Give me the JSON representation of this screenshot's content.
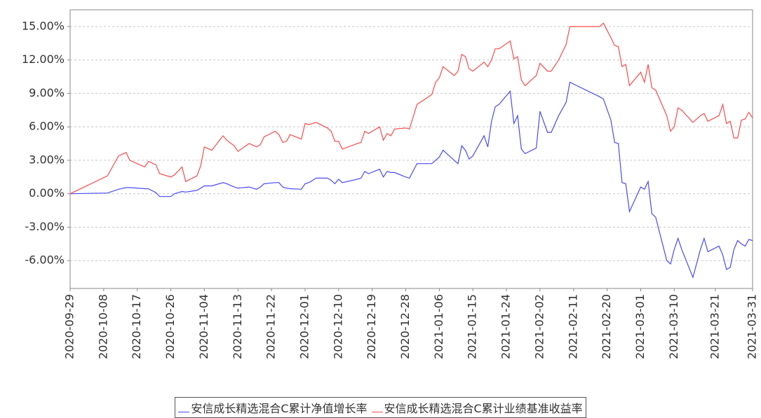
{
  "chart_data": {
    "type": "line",
    "x": [
      "2020-09-29",
      "2020-10-09",
      "2020-10-12",
      "2020-10-14",
      "2020-10-15",
      "2020-10-19",
      "2020-10-20",
      "2020-10-22",
      "2020-10-23",
      "2020-10-26",
      "2020-10-27",
      "2020-10-29",
      "2020-10-30",
      "2020-11-02",
      "2020-11-03",
      "2020-11-04",
      "2020-11-06",
      "2020-11-09",
      "2020-11-10",
      "2020-11-12",
      "2020-11-13",
      "2020-11-16",
      "2020-11-18",
      "2020-11-19",
      "2020-11-20",
      "2020-11-23",
      "2020-11-24",
      "2020-11-25",
      "2020-11-26",
      "2020-11-27",
      "2020-11-30",
      "2020-12-01",
      "2020-12-02",
      "2020-12-04",
      "2020-12-07",
      "2020-12-08",
      "2020-12-09",
      "2020-12-10",
      "2020-12-11",
      "2020-12-15",
      "2020-12-16",
      "2020-12-17",
      "2020-12-18",
      "2020-12-21",
      "2020-12-22",
      "2020-12-23",
      "2020-12-24",
      "2020-12-25",
      "2020-12-28",
      "2020-12-29",
      "2020-12-31",
      "2021-01-04",
      "2021-01-05",
      "2021-01-06",
      "2021-01-07",
      "2021-01-10",
      "2021-01-11",
      "2021-01-12",
      "2021-01-13",
      "2021-01-14",
      "2021-01-15",
      "2021-01-18",
      "2021-01-19",
      "2021-01-20",
      "2021-01-21",
      "2021-01-22",
      "2021-01-25",
      "2021-01-26",
      "2021-01-27",
      "2021-01-28",
      "2021-01-29",
      "2021-02-01",
      "2021-02-02",
      "2021-02-04",
      "2021-02-05",
      "2021-02-07",
      "2021-02-09",
      "2021-02-10",
      "2021-02-18",
      "2021-02-19",
      "2021-02-21",
      "2021-02-22",
      "2021-02-23",
      "2021-02-24",
      "2021-02-25",
      "2021-02-26",
      "2021-03-01",
      "2021-03-02",
      "2021-03-03",
      "2021-03-04",
      "2021-03-05",
      "2021-03-08",
      "2021-03-09",
      "2021-03-10",
      "2021-03-11",
      "2021-03-12",
      "2021-03-15",
      "2021-03-17",
      "2021-03-18",
      "2021-03-19",
      "2021-03-22",
      "2021-03-23",
      "2021-03-24",
      "2021-03-25",
      "2021-03-26",
      "2021-03-27",
      "2021-03-28",
      "2021-03-29",
      "2021-03-30",
      "2021-03-31"
    ],
    "series": [
      {
        "name": "安信成长精选混合C累计净值增长率",
        "color": "#4a4aff",
        "values": [
          0,
          0.06,
          0.4,
          0.55,
          0.55,
          0.45,
          0.44,
          0.1,
          -0.25,
          -0.25,
          0,
          0.2,
          0.15,
          0.3,
          0.5,
          0.7,
          0.7,
          1.0,
          0.9,
          0.6,
          0.5,
          0.6,
          0.4,
          0.6,
          0.9,
          1.0,
          1.0,
          0.6,
          0.5,
          0.45,
          0.4,
          0.9,
          1.0,
          1.4,
          1.4,
          1.2,
          0.9,
          1.3,
          1.0,
          1.3,
          1.4,
          2.0,
          1.8,
          2.2,
          1.5,
          2.0,
          1.9,
          1.9,
          1.5,
          1.4,
          2.7,
          2.7,
          3.0,
          3.3,
          3.9,
          3.0,
          2.7,
          4.3,
          3.9,
          3.1,
          3.4,
          5.2,
          4.2,
          6.5,
          7.8,
          8.0,
          9.2,
          6.3,
          7.0,
          4.0,
          3.6,
          4.1,
          7.4,
          5.5,
          5.5,
          7.0,
          8.2,
          10.0,
          8.7,
          8.5,
          6.6,
          4.6,
          4.5,
          1.0,
          0.9,
          -1.6,
          0.6,
          0.4,
          1.1,
          -1.8,
          -2.1,
          -6.0,
          -6.3,
          -5.0,
          -4.0,
          -5.0,
          -7.5,
          -5.0,
          -4.0,
          -5.2,
          -4.7,
          -5.5,
          -6.8,
          -6.6,
          -5.0,
          -4.2,
          -4.5,
          -4.7,
          -4.1,
          -4.2
        ]
      },
      {
        "name": "安信成长精选混合C累计业绩基准收益率",
        "color": "#ff4a4a",
        "values": [
          0,
          1.6,
          3.4,
          3.7,
          3.0,
          2.4,
          2.9,
          2.6,
          1.8,
          1.5,
          1.7,
          2.4,
          1.1,
          1.6,
          2.5,
          4.2,
          3.9,
          5.2,
          4.8,
          4.3,
          3.8,
          4.5,
          4.2,
          4.4,
          5.1,
          5.6,
          5.3,
          4.6,
          4.7,
          5.3,
          4.9,
          6.3,
          6.2,
          6.4,
          5.9,
          5.6,
          4.7,
          4.7,
          4.0,
          4.5,
          4.6,
          5.6,
          5.4,
          6.0,
          4.8,
          5.4,
          5.2,
          5.8,
          5.9,
          5.8,
          8.0,
          8.9,
          10.0,
          10.4,
          11.4,
          10.6,
          11.0,
          12.5,
          12.3,
          11.2,
          11.0,
          11.8,
          11.4,
          12.0,
          13.0,
          13.0,
          13.7,
          12.1,
          12.3,
          10.2,
          9.7,
          10.6,
          11.7,
          11.0,
          11.0,
          12.0,
          13.4,
          15.0,
          15.0,
          15.3,
          14.0,
          13.3,
          13.2,
          11.4,
          11.6,
          9.7,
          10.9,
          10.0,
          11.6,
          9.5,
          9.3,
          7.0,
          5.6,
          6.0,
          7.7,
          7.5,
          6.4,
          7.0,
          7.2,
          6.5,
          7.0,
          8.0,
          6.3,
          6.5,
          5.0,
          5.0,
          6.6,
          6.7,
          7.3,
          6.8
        ]
      }
    ],
    "xlim": [
      "2020-09-29",
      "2021-03-31"
    ],
    "xticks": [
      "2020-09-29",
      "2020-10-08",
      "2020-10-17",
      "2020-10-26",
      "2020-11-04",
      "2020-11-13",
      "2020-11-22",
      "2020-12-01",
      "2020-12-10",
      "2020-12-19",
      "2020-12-28",
      "2021-01-06",
      "2021-01-15",
      "2021-01-24",
      "2021-02-02",
      "2021-02-11",
      "2021-02-20",
      "2021-03-01",
      "2021-03-10",
      "2021-03-21",
      "2021-03-31"
    ],
    "ylim": [
      -8.5,
      16.5
    ],
    "yticks": [
      {
        "value": -6,
        "label": "-6.00%"
      },
      {
        "value": -3,
        "label": "-3.00%"
      },
      {
        "value": 0,
        "label": "0.00%"
      },
      {
        "value": 3,
        "label": "3.00%"
      },
      {
        "value": 6,
        "label": "6.00%"
      },
      {
        "value": 9,
        "label": "9.00%"
      },
      {
        "value": 12,
        "label": "12.00%"
      },
      {
        "value": 15,
        "label": "15.00%"
      }
    ],
    "grid": true
  }
}
